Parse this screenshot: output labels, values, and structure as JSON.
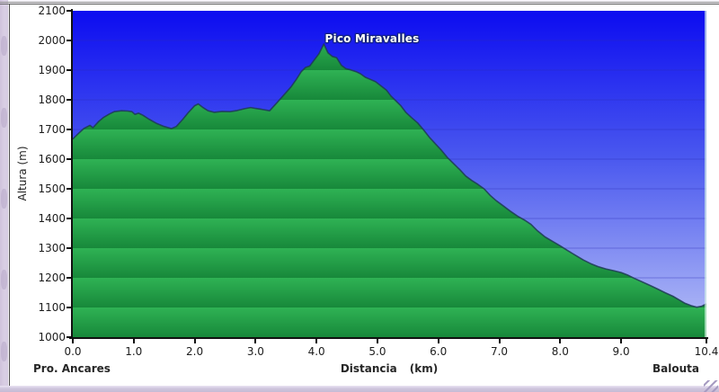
{
  "window": {
    "left_strip_color": "#d9cfe4",
    "bottom_strip_color": "#cfc5dd"
  },
  "chart": {
    "peak_annotation": "Pico Miravalles",
    "ylabel": "Altura (m)",
    "xlabel": "Distancia",
    "xlabel_unit": "(km)",
    "start_label": "Pro. Ancares",
    "end_label": "Balouta"
  },
  "chart_data": {
    "type": "area",
    "title": "",
    "annotation": {
      "text": "Pico Miravalles",
      "x_km": 4.12,
      "elevation_m": 1988
    },
    "xlabel": "Distancia (km)",
    "ylabel": "Altura (m)",
    "xlim": [
      0,
      10.4
    ],
    "ylim": [
      1000,
      2100
    ],
    "grid": "horizontal",
    "route_start": "Pro. Ancares",
    "route_end": "Balouta",
    "y_ticks": [
      {
        "v": 2100,
        "label": "2100"
      },
      {
        "v": 2000,
        "label": "2000"
      },
      {
        "v": 1900,
        "label": "1900"
      },
      {
        "v": 1800,
        "label": "1800"
      },
      {
        "v": 1700,
        "label": "1700"
      },
      {
        "v": 1600,
        "label": "1600"
      },
      {
        "v": 1500,
        "label": "1500"
      },
      {
        "v": 1400,
        "label": "1400"
      },
      {
        "v": 1300,
        "label": "1300"
      },
      {
        "v": 1200,
        "label": "1200"
      },
      {
        "v": 1100,
        "label": "1100"
      },
      {
        "v": 1000,
        "label": "1000"
      }
    ],
    "x_ticks": [
      {
        "v": 0,
        "label": "0.0"
      },
      {
        "v": 1,
        "label": "1.0"
      },
      {
        "v": 2,
        "label": "2.0"
      },
      {
        "v": 3,
        "label": "3.0"
      },
      {
        "v": 4,
        "label": "4.0"
      },
      {
        "v": 5,
        "label": "5.0"
      },
      {
        "v": 6,
        "label": "6.0"
      },
      {
        "v": 7,
        "label": "7.0"
      },
      {
        "v": 8,
        "label": "8.0"
      },
      {
        "v": 9,
        "label": "9.0"
      },
      {
        "v": 10.4,
        "label": "10.4"
      }
    ],
    "colors": {
      "sky_top": "#0c0cf0",
      "sky_mid": "#4a58ef",
      "sky_bottom": "#b9c2f6",
      "band_light": "#2fb254",
      "band_dark": "#17883a",
      "ridge": "#1d3b55",
      "gridline": "#2b2bb8",
      "plot_right_edge": "#d8f5e6"
    },
    "profile": [
      [
        0.0,
        1668
      ],
      [
        0.08,
        1684
      ],
      [
        0.18,
        1703
      ],
      [
        0.28,
        1714
      ],
      [
        0.33,
        1706
      ],
      [
        0.42,
        1726
      ],
      [
        0.5,
        1740
      ],
      [
        0.6,
        1752
      ],
      [
        0.68,
        1760
      ],
      [
        0.8,
        1763
      ],
      [
        0.9,
        1762
      ],
      [
        0.97,
        1760
      ],
      [
        1.02,
        1751
      ],
      [
        1.08,
        1755
      ],
      [
        1.15,
        1748
      ],
      [
        1.25,
        1735
      ],
      [
        1.38,
        1720
      ],
      [
        1.5,
        1710
      ],
      [
        1.62,
        1703
      ],
      [
        1.7,
        1710
      ],
      [
        1.8,
        1733
      ],
      [
        1.9,
        1758
      ],
      [
        2.0,
        1780
      ],
      [
        2.06,
        1786
      ],
      [
        2.13,
        1775
      ],
      [
        2.22,
        1763
      ],
      [
        2.32,
        1758
      ],
      [
        2.45,
        1761
      ],
      [
        2.58,
        1760
      ],
      [
        2.7,
        1764
      ],
      [
        2.82,
        1770
      ],
      [
        2.92,
        1774
      ],
      [
        3.0,
        1771
      ],
      [
        3.1,
        1768
      ],
      [
        3.23,
        1763
      ],
      [
        3.35,
        1790
      ],
      [
        3.45,
        1813
      ],
      [
        3.58,
        1843
      ],
      [
        3.67,
        1869
      ],
      [
        3.75,
        1895
      ],
      [
        3.82,
        1909
      ],
      [
        3.89,
        1914
      ],
      [
        3.97,
        1936
      ],
      [
        4.04,
        1955
      ],
      [
        4.12,
        1988
      ],
      [
        4.19,
        1958
      ],
      [
        4.26,
        1946
      ],
      [
        4.33,
        1942
      ],
      [
        4.41,
        1916
      ],
      [
        4.48,
        1905
      ],
      [
        4.56,
        1901
      ],
      [
        4.65,
        1895
      ],
      [
        4.72,
        1888
      ],
      [
        4.8,
        1876
      ],
      [
        4.88,
        1869
      ],
      [
        4.97,
        1861
      ],
      [
        5.07,
        1845
      ],
      [
        5.15,
        1832
      ],
      [
        5.22,
        1813
      ],
      [
        5.3,
        1797
      ],
      [
        5.38,
        1781
      ],
      [
        5.47,
        1757
      ],
      [
        5.56,
        1740
      ],
      [
        5.66,
        1722
      ],
      [
        5.76,
        1698
      ],
      [
        5.86,
        1672
      ],
      [
        5.95,
        1652
      ],
      [
        6.05,
        1630
      ],
      [
        6.15,
        1605
      ],
      [
        6.25,
        1585
      ],
      [
        6.35,
        1565
      ],
      [
        6.45,
        1543
      ],
      [
        6.55,
        1528
      ],
      [
        6.65,
        1515
      ],
      [
        6.75,
        1500
      ],
      [
        6.85,
        1478
      ],
      [
        6.95,
        1460
      ],
      [
        7.05,
        1445
      ],
      [
        7.18,
        1425
      ],
      [
        7.3,
        1408
      ],
      [
        7.42,
        1394
      ],
      [
        7.52,
        1380
      ],
      [
        7.62,
        1360
      ],
      [
        7.75,
        1338
      ],
      [
        7.88,
        1322
      ],
      [
        8.0,
        1308
      ],
      [
        8.12,
        1292
      ],
      [
        8.25,
        1276
      ],
      [
        8.38,
        1260
      ],
      [
        8.5,
        1248
      ],
      [
        8.62,
        1238
      ],
      [
        8.75,
        1230
      ],
      [
        8.88,
        1224
      ],
      [
        9.0,
        1218
      ],
      [
        9.1,
        1210
      ],
      [
        9.22,
        1198
      ],
      [
        9.35,
        1186
      ],
      [
        9.48,
        1174
      ],
      [
        9.6,
        1162
      ],
      [
        9.72,
        1150
      ],
      [
        9.85,
        1138
      ],
      [
        9.95,
        1126
      ],
      [
        10.05,
        1114
      ],
      [
        10.15,
        1106
      ],
      [
        10.24,
        1101
      ],
      [
        10.32,
        1104
      ],
      [
        10.4,
        1112
      ]
    ]
  }
}
